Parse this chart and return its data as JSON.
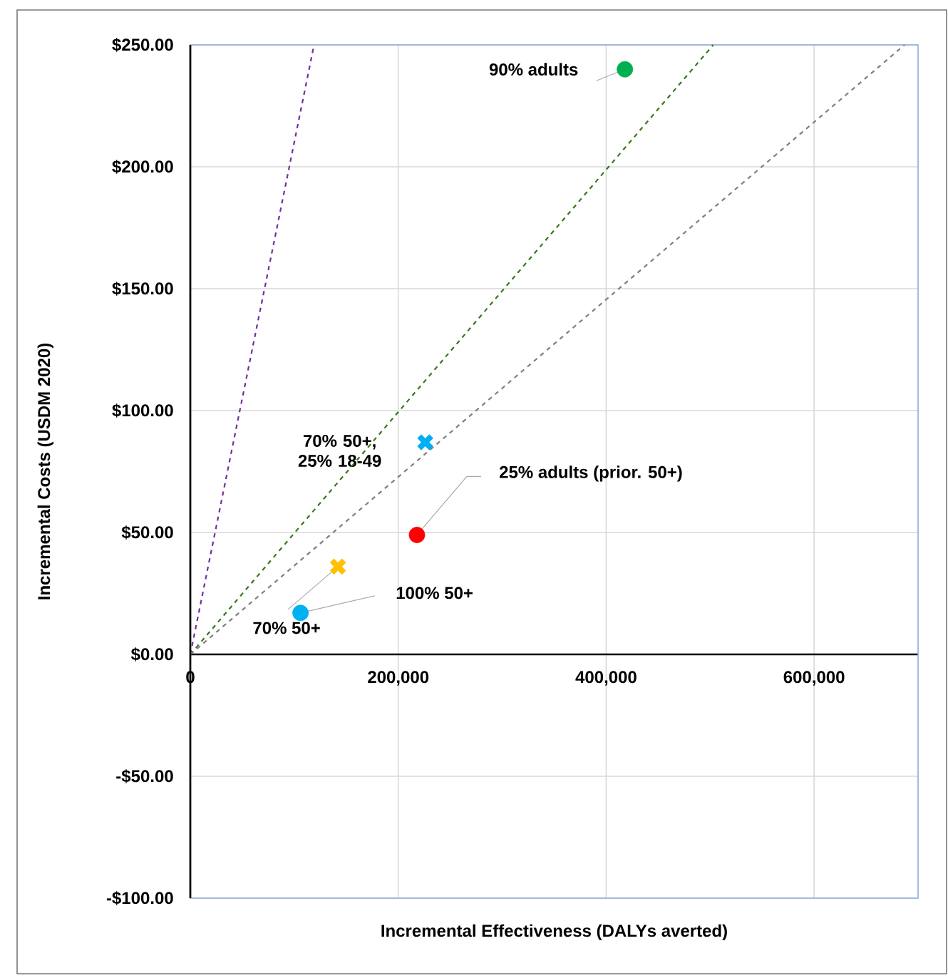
{
  "chart_data": {
    "type": "scatter",
    "xlabel": "Incremental Effectiveness (DALYs averted)",
    "ylabel": "Incremental Costs (USDM 2020)",
    "xlim": [
      0,
      700000
    ],
    "ylim": [
      -100,
      250
    ],
    "xticks": [
      0,
      {
        "value": 200000,
        "label": "200,000"
      },
      {
        "value": 400000,
        "label": "400,000"
      },
      {
        "value": 600000,
        "label": "600,000"
      }
    ],
    "yticks": [
      {
        "value": -100,
        "label": "-$100.00"
      },
      {
        "value": -50,
        "label": "-$50.00"
      },
      {
        "value": 0,
        "label": "$0.00"
      },
      {
        "value": 50,
        "label": "$50.00"
      },
      {
        "value": 100,
        "label": "$100.00"
      },
      {
        "value": 150,
        "label": "$150.00"
      },
      {
        "value": 200,
        "label": "$200.00"
      },
      {
        "value": 250,
        "label": "$250.00"
      }
    ],
    "grid": true,
    "series": [
      {
        "type": "line",
        "color": "#7030a0",
        "line_style": "dashed",
        "marker": "none",
        "x": [
          0,
          119000
        ],
        "values": [
          0,
          250
        ]
      },
      {
        "type": "line",
        "color": "#38761d",
        "line_style": "dashed",
        "marker": "none",
        "x": [
          0,
          503000
        ],
        "values": [
          0,
          250
        ]
      },
      {
        "type": "line",
        "color": "#7f7f7f",
        "line_style": "dashed",
        "marker": "none",
        "x": [
          0,
          687000
        ],
        "values": [
          0,
          250
        ]
      },
      {
        "name": "90% adults",
        "color": "#00b050",
        "marker": "circle",
        "x": [
          418000
        ],
        "values": [
          240
        ]
      },
      {
        "name": "25% adults (prior. 50+)",
        "color": "#ff0000",
        "marker": "circle",
        "x": [
          218000
        ],
        "values": [
          49
        ]
      },
      {
        "name": "70% 50+, 25% 18-49",
        "color": "#00b0f0",
        "marker": "cross",
        "x": [
          226000
        ],
        "values": [
          87
        ]
      },
      {
        "name": "70% 50+",
        "color": "#ffc000",
        "marker": "cross",
        "x": [
          142000
        ],
        "values": [
          36
        ]
      },
      {
        "name": "100% 50+",
        "color": "#00b0f0",
        "marker": "circle",
        "x": [
          106000
        ],
        "values": [
          17
        ]
      }
    ]
  }
}
